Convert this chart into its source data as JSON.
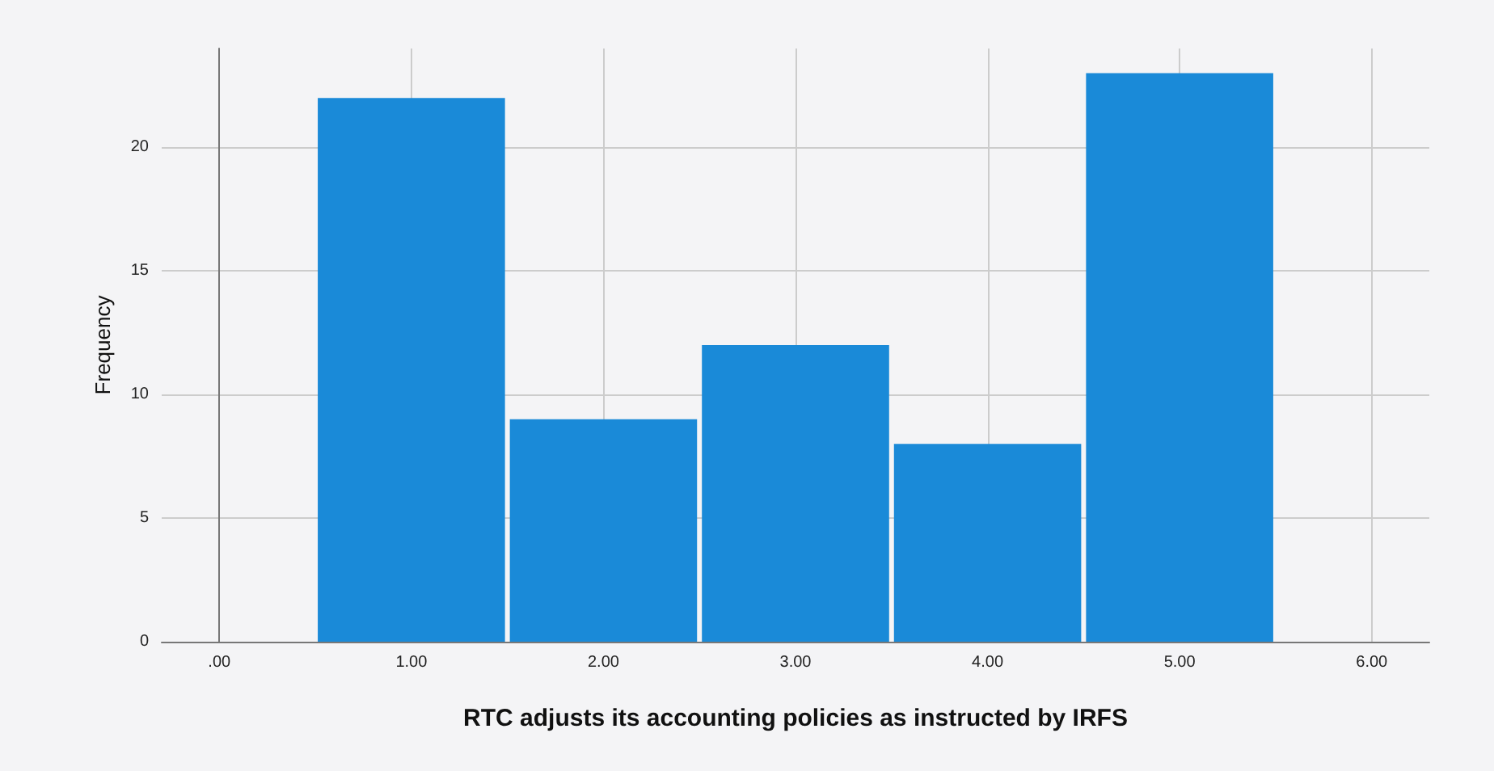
{
  "chart_data": {
    "type": "histogram",
    "xlabel": "RTC adjusts its accounting policies as instructed by IRFS",
    "ylabel": "Frequency",
    "bins": [
      0.5,
      1.5,
      2.5,
      3.5,
      4.5,
      5.5
    ],
    "values": [
      22,
      9,
      12,
      8,
      23
    ],
    "color": "#1a8ad8",
    "xlim": [
      -0.3,
      6.3
    ],
    "xticks": [
      {
        "value": 0,
        "label": ".00"
      },
      {
        "value": 1,
        "label": "1.00"
      },
      {
        "value": 2,
        "label": "2.00"
      },
      {
        "value": 3,
        "label": "3.00"
      },
      {
        "value": 4,
        "label": "4.00"
      },
      {
        "value": 5,
        "label": "5.00"
      },
      {
        "value": 6,
        "label": "6.00"
      }
    ],
    "ylim": [
      0,
      24
    ],
    "yticks": [
      0,
      5,
      10,
      15,
      20
    ],
    "grid": true
  }
}
